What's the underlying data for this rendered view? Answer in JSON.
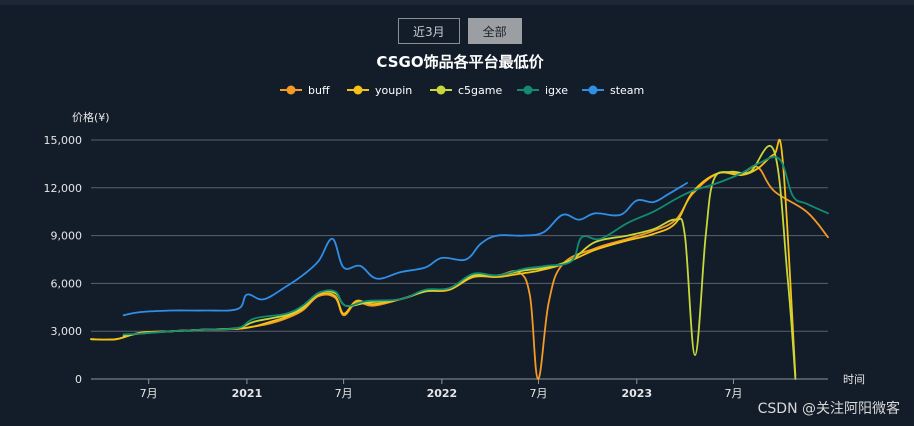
{
  "range_toggle": {
    "items": [
      {
        "label": "近3月",
        "active": false
      },
      {
        "label": "全部",
        "active": true
      }
    ]
  },
  "watermark": "CSDN @关注阿阳微客",
  "chart_data": {
    "type": "line",
    "title": "CSGO饰品各平台最低价",
    "ylabel": "价格(¥)",
    "xlabel": "时间",
    "ylim": [
      0,
      15000
    ],
    "yticks": [
      0,
      3000,
      6000,
      9000,
      12000,
      15000
    ],
    "ytick_labels": [
      "0",
      "3,000",
      "6,000",
      "9,000",
      "12,000",
      "15,000"
    ],
    "xlim": [
      "2020-03-15",
      "2023-12-25"
    ],
    "xticks": [
      {
        "date": "2020-07-01",
        "label": "7月",
        "bold": false
      },
      {
        "date": "2021-01-01",
        "label": "2021",
        "bold": true
      },
      {
        "date": "2021-07-01",
        "label": "7月",
        "bold": false
      },
      {
        "date": "2022-01-01",
        "label": "2022",
        "bold": true
      },
      {
        "date": "2022-07-01",
        "label": "7月",
        "bold": false
      },
      {
        "date": "2023-01-01",
        "label": "2023",
        "bold": true
      },
      {
        "date": "2023-07-01",
        "label": "7月",
        "bold": false
      }
    ],
    "grid": true,
    "legend_position": "top-center",
    "series": [
      {
        "name": "buff",
        "color": "#f59a23",
        "points": [
          [
            "2020-03-15",
            2500
          ],
          [
            "2020-05-01",
            2500
          ],
          [
            "2020-06-15",
            2900
          ],
          [
            "2020-08-15",
            3000
          ],
          [
            "2020-10-15",
            3100
          ],
          [
            "2020-12-15",
            3150
          ],
          [
            "2021-01-15",
            3300
          ],
          [
            "2021-02-15",
            3500
          ],
          [
            "2021-03-15",
            3800
          ],
          [
            "2021-04-15",
            4300
          ],
          [
            "2021-05-15",
            5200
          ],
          [
            "2021-06-15",
            5100
          ],
          [
            "2021-07-01",
            4000
          ],
          [
            "2021-07-25",
            4800
          ],
          [
            "2021-08-25",
            4600
          ],
          [
            "2021-10-15",
            5000
          ],
          [
            "2021-12-01",
            5500
          ],
          [
            "2022-01-15",
            5600
          ],
          [
            "2022-03-01",
            6500
          ],
          [
            "2022-04-15",
            6500
          ],
          [
            "2022-05-25",
            6700
          ],
          [
            "2022-06-15",
            5200
          ],
          [
            "2022-06-30",
            0
          ],
          [
            "2022-07-20",
            4800
          ],
          [
            "2022-08-15",
            7200
          ],
          [
            "2022-10-15",
            8200
          ],
          [
            "2022-12-15",
            8800
          ],
          [
            "2023-02-01",
            9300
          ],
          [
            "2023-03-15",
            10000
          ],
          [
            "2023-04-15",
            11600
          ],
          [
            "2023-06-01",
            12900
          ],
          [
            "2023-07-15",
            12900
          ],
          [
            "2023-08-15",
            13300
          ],
          [
            "2023-09-15",
            11800
          ],
          [
            "2023-11-15",
            10500
          ],
          [
            "2023-12-25",
            8900
          ]
        ]
      },
      {
        "name": "youpin",
        "color": "#f5c218",
        "points": [
          [
            "2020-03-15",
            2500
          ],
          [
            "2020-05-01",
            2500
          ],
          [
            "2020-06-15",
            2900
          ],
          [
            "2020-08-15",
            3000
          ],
          [
            "2020-10-15",
            3100
          ],
          [
            "2020-12-15",
            3150
          ],
          [
            "2021-01-15",
            3300
          ],
          [
            "2021-02-15",
            3600
          ],
          [
            "2021-03-15",
            3900
          ],
          [
            "2021-04-15",
            4400
          ],
          [
            "2021-05-15",
            5300
          ],
          [
            "2021-06-15",
            5200
          ],
          [
            "2021-07-01",
            4100
          ],
          [
            "2021-07-25",
            4900
          ],
          [
            "2021-08-25",
            4700
          ],
          [
            "2021-10-15",
            5000
          ],
          [
            "2021-12-01",
            5500
          ],
          [
            "2022-01-15",
            5600
          ],
          [
            "2022-03-01",
            6400
          ],
          [
            "2022-04-15",
            6400
          ],
          [
            "2022-05-25",
            6600
          ],
          [
            "2022-07-01",
            6800
          ],
          [
            "2022-08-15",
            7200
          ],
          [
            "2022-10-15",
            8100
          ],
          [
            "2022-12-15",
            8700
          ],
          [
            "2023-02-01",
            9100
          ],
          [
            "2023-03-15",
            9800
          ],
          [
            "2023-04-15",
            11700
          ],
          [
            "2023-06-01",
            12900
          ],
          [
            "2023-07-15",
            12800
          ],
          [
            "2023-08-15",
            13200
          ],
          [
            "2023-09-15",
            14100
          ],
          [
            "2023-10-01",
            13800
          ],
          [
            "2023-10-25",
            200
          ]
        ]
      },
      {
        "name": "c5game",
        "color": "#c6d83a",
        "points": [
          [
            "2020-05-15",
            2700
          ],
          [
            "2020-06-15",
            2850
          ],
          [
            "2020-08-15",
            3000
          ],
          [
            "2020-10-15",
            3100
          ],
          [
            "2020-12-15",
            3200
          ],
          [
            "2021-01-15",
            3600
          ],
          [
            "2021-03-15",
            4000
          ],
          [
            "2021-04-15",
            4500
          ],
          [
            "2021-05-15",
            5400
          ],
          [
            "2021-06-15",
            5400
          ],
          [
            "2021-07-05",
            4600
          ],
          [
            "2021-08-15",
            4800
          ],
          [
            "2021-10-15",
            5000
          ],
          [
            "2021-12-01",
            5500
          ],
          [
            "2022-01-15",
            5700
          ],
          [
            "2022-03-01",
            6500
          ],
          [
            "2022-04-15",
            6500
          ],
          [
            "2022-06-01",
            6800
          ],
          [
            "2022-07-15",
            7000
          ],
          [
            "2022-09-01",
            7500
          ],
          [
            "2022-10-15",
            8600
          ],
          [
            "2022-12-15",
            9000
          ],
          [
            "2023-02-01",
            9400
          ],
          [
            "2023-03-15",
            10000
          ],
          [
            "2023-04-01",
            9000
          ],
          [
            "2023-04-20",
            1500
          ],
          [
            "2023-05-10",
            9000
          ],
          [
            "2023-05-25",
            12500
          ],
          [
            "2023-06-25",
            13000
          ],
          [
            "2023-08-01",
            13000
          ],
          [
            "2023-09-15",
            14300
          ],
          [
            "2023-10-10",
            6500
          ],
          [
            "2023-10-25",
            0
          ]
        ]
      },
      {
        "name": "igxe",
        "color": "#138a72",
        "points": [
          [
            "2020-05-15",
            2800
          ],
          [
            "2020-06-15",
            2850
          ],
          [
            "2020-08-15",
            3000
          ],
          [
            "2020-10-15",
            3100
          ],
          [
            "2020-12-15",
            3200
          ],
          [
            "2021-01-15",
            3800
          ],
          [
            "2021-03-15",
            4100
          ],
          [
            "2021-04-15",
            4600
          ],
          [
            "2021-05-15",
            5400
          ],
          [
            "2021-06-15",
            5500
          ],
          [
            "2021-07-05",
            4600
          ],
          [
            "2021-08-15",
            4900
          ],
          [
            "2021-10-15",
            5000
          ],
          [
            "2021-12-01",
            5600
          ],
          [
            "2022-01-15",
            5700
          ],
          [
            "2022-03-01",
            6600
          ],
          [
            "2022-04-15",
            6500
          ],
          [
            "2022-06-01",
            6900
          ],
          [
            "2022-07-15",
            7100
          ],
          [
            "2022-09-01",
            7400
          ],
          [
            "2022-09-20",
            8900
          ],
          [
            "2022-10-25",
            8800
          ],
          [
            "2022-12-15",
            9800
          ],
          [
            "2023-02-01",
            10500
          ],
          [
            "2023-03-15",
            11300
          ],
          [
            "2023-04-15",
            11800
          ],
          [
            "2023-06-01",
            12300
          ],
          [
            "2023-07-15",
            12900
          ],
          [
            "2023-08-15",
            13500
          ],
          [
            "2023-09-25",
            13800
          ],
          [
            "2023-10-20",
            11500
          ],
          [
            "2023-11-15",
            11000
          ],
          [
            "2023-12-25",
            10400
          ]
        ]
      },
      {
        "name": "steam",
        "color": "#2f8ee6",
        "points": [
          [
            "2020-05-15",
            4000
          ],
          [
            "2020-06-15",
            4200
          ],
          [
            "2020-08-15",
            4300
          ],
          [
            "2020-10-15",
            4300
          ],
          [
            "2020-12-15",
            4400
          ],
          [
            "2021-01-01",
            5300
          ],
          [
            "2021-02-01",
            5000
          ],
          [
            "2021-03-15",
            5800
          ],
          [
            "2021-04-15",
            6500
          ],
          [
            "2021-05-15",
            7400
          ],
          [
            "2021-06-10",
            8800
          ],
          [
            "2021-07-01",
            7000
          ],
          [
            "2021-08-01",
            7100
          ],
          [
            "2021-09-01",
            6300
          ],
          [
            "2021-10-15",
            6700
          ],
          [
            "2021-12-01",
            7000
          ],
          [
            "2022-01-01",
            7600
          ],
          [
            "2022-02-15",
            7500
          ],
          [
            "2022-03-15",
            8500
          ],
          [
            "2022-04-15",
            9000
          ],
          [
            "2022-06-01",
            9000
          ],
          [
            "2022-07-10",
            9200
          ],
          [
            "2022-08-15",
            10300
          ],
          [
            "2022-09-15",
            10000
          ],
          [
            "2022-10-15",
            10400
          ],
          [
            "2022-12-01",
            10300
          ],
          [
            "2023-01-01",
            11200
          ],
          [
            "2023-02-01",
            11100
          ],
          [
            "2023-03-01",
            11600
          ],
          [
            "2023-04-05",
            12300
          ]
        ]
      }
    ]
  }
}
